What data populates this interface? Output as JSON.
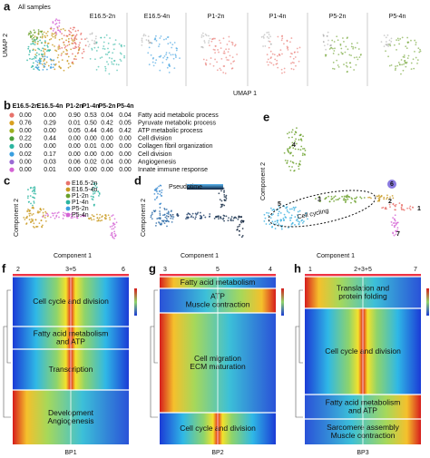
{
  "panels": {
    "a": {
      "label": "a",
      "title": "All samples",
      "subtitles": [
        "E16.5-2n",
        "E16.5-4n",
        "P1-2n",
        "P1-4n",
        "P5-2n",
        "P5-4n"
      ],
      "x_axis": "UMAP 1",
      "y_axis": "UMAP 2"
    },
    "b": {
      "label": "b",
      "table": {
        "header": [
          "E16.5-2n",
          "E16.5-4n",
          "P1-2n",
          "P1-4n",
          "P5-2n",
          "P5-4n"
        ],
        "rows": [
          {
            "values": [
              "0.00",
              "0.00",
              "0.90",
              "0.53",
              "0.04",
              "0.04"
            ],
            "term": "Fatty acid metabolic process"
          },
          {
            "values": [
              "0.76",
              "0.29",
              "0.01",
              "0.50",
              "0.42",
              "0.05"
            ],
            "term": "Pyruvate metabolic process"
          },
          {
            "values": [
              "0.00",
              "0.00",
              "0.05",
              "0.44",
              "0.46",
              "0.42"
            ],
            "term": "ATP metabolic process"
          },
          {
            "values": [
              "0.22",
              "0.44",
              "0.00",
              "0.00",
              "0.00",
              "0.00"
            ],
            "term": "Cell division"
          },
          {
            "values": [
              "0.00",
              "0.00",
              "0.00",
              "0.01",
              "0.00",
              "0.00"
            ],
            "term": "Collagen fibril organization"
          },
          {
            "values": [
              "0.02",
              "0.17",
              "0.00",
              "0.00",
              "0.00",
              "0.00"
            ],
            "term": "Cell division"
          },
          {
            "values": [
              "0.00",
              "0.03",
              "0.06",
              "0.02",
              "0.04",
              "0.00"
            ],
            "term": "Angiogenesis"
          },
          {
            "values": [
              "0.00",
              "0.01",
              "0.00",
              "0.00",
              "0.00",
              "0.00"
            ],
            "term": "Innate immune response"
          }
        ]
      }
    },
    "c": {
      "label": "c",
      "legend": [
        "E16.5-2n",
        "E16.5-4n",
        "P1-2n",
        "P1-4n",
        "P5-2n",
        "P5-4n"
      ],
      "x_axis": "Component 1",
      "y_axis": "Component 2"
    },
    "d": {
      "label": "d",
      "legend_title": "Pseudotime",
      "x_axis": "Component 1",
      "y_axis": "Component 2"
    },
    "e": {
      "label": "e",
      "states": [
        "1",
        "2",
        "3",
        "4",
        "5",
        "6",
        "7"
      ],
      "annotation": "Cell cycling",
      "x_axis": "Component 1",
      "y_axis": "Component 2"
    },
    "heatmaps": [
      {
        "label": "f",
        "top": [
          "2",
          "3+5",
          "6"
        ],
        "name": "BP1",
        "blocks": [
          [
            "Cell cycle and division"
          ],
          [
            "Fatty acid metabolism",
            "and ATP"
          ],
          [
            "Transcription"
          ],
          [
            "Development",
            "Angiogenesis"
          ]
        ]
      },
      {
        "label": "g",
        "top": [
          "3",
          "5",
          "4"
        ],
        "name": "BP2",
        "blocks": [
          [
            "Fatty acid metabolism"
          ],
          [
            "ATP",
            "Muscle contraction"
          ],
          [
            "Cell migration",
            "ECM maturation"
          ],
          [
            "Cell cycle and division"
          ]
        ]
      },
      {
        "label": "h",
        "top": [
          "1",
          "2+3+5",
          "7"
        ],
        "name": "BP3",
        "blocks": [
          [
            "Translation and",
            "protein folding"
          ],
          [
            "Cell cycle and division"
          ],
          [
            "Fatty acid metabolism",
            "and ATP"
          ],
          [
            "Sarcomere assembly",
            "Muscle contraction"
          ]
        ]
      }
    ]
  }
}
